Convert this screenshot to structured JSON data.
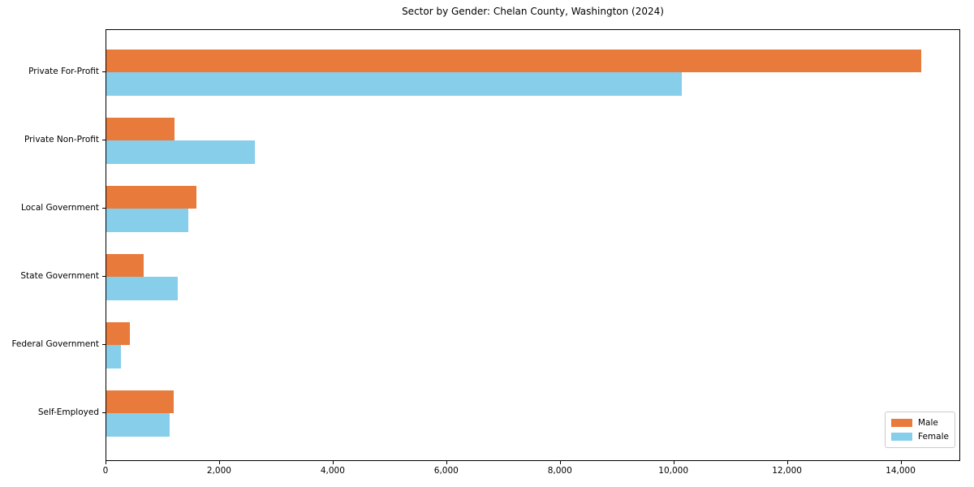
{
  "chart_data": {
    "type": "bar",
    "orientation": "horizontal",
    "title": "Sector by Gender: Chelan County, Washington (2024)",
    "categories": [
      "Private For-Profit",
      "Private Non-Profit",
      "Local Government",
      "State Government",
      "Federal Government",
      "Self-Employed"
    ],
    "series": [
      {
        "name": "Male",
        "color": "#E87A3C",
        "values": [
          14350,
          1200,
          1585,
          655,
          415,
          1185
        ]
      },
      {
        "name": "Female",
        "color": "#87CEEB",
        "values": [
          10140,
          2615,
          1445,
          1255,
          255,
          1115
        ]
      }
    ],
    "xlabel": "",
    "ylabel": "",
    "xlim": [
      0,
      15050
    ],
    "xticks": [
      0,
      2000,
      4000,
      6000,
      8000,
      10000,
      12000,
      14000
    ],
    "xtick_labels": [
      "0",
      "2,000",
      "4,000",
      "6,000",
      "8,000",
      "10,000",
      "12,000",
      "14,000"
    ],
    "grid": false,
    "legend_position": "lower right",
    "axis_color": "#000000",
    "background_color": "#ffffff"
  }
}
